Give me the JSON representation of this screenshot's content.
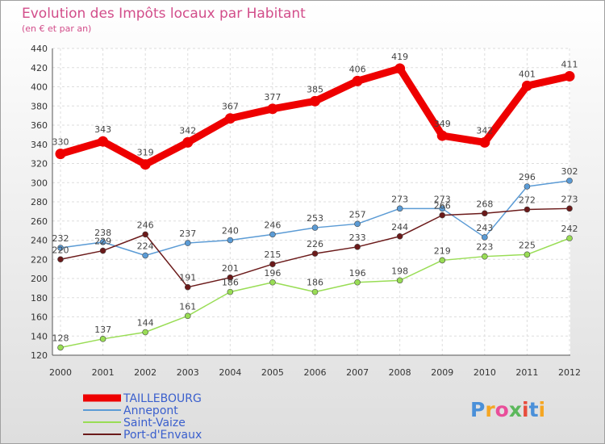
{
  "chart_data": {
    "type": "line",
    "title": "Evolution des Impôts locaux par Habitant",
    "subtitle": "(en € et par an)",
    "xlabel": "",
    "ylabel": "",
    "categories": [
      "2000",
      "2001",
      "2002",
      "2003",
      "2004",
      "2005",
      "2006",
      "2007",
      "2008",
      "2009",
      "2010",
      "2011",
      "2012"
    ],
    "ylim": [
      120,
      440
    ],
    "yticks": [
      120,
      140,
      160,
      180,
      200,
      220,
      240,
      260,
      280,
      300,
      320,
      340,
      360,
      380,
      400,
      420,
      440
    ],
    "grid": true,
    "legend_position": "bottom-left",
    "series": [
      {
        "name": "TAILLEBOURG",
        "color": "#ee0000",
        "values": [
          330,
          343,
          319,
          342,
          367,
          377,
          385,
          406,
          419,
          349,
          342,
          401,
          411
        ]
      },
      {
        "name": "Annepont",
        "color": "#5b9bd5",
        "values": [
          232,
          238,
          224,
          237,
          240,
          246,
          253,
          257,
          273,
          273,
          243,
          296,
          302
        ]
      },
      {
        "name": "Saint-Vaize",
        "color": "#99dd55",
        "values": [
          128,
          137,
          144,
          161,
          186,
          196,
          186,
          196,
          198,
          219,
          223,
          225,
          242
        ]
      },
      {
        "name": "Port-d'Envaux",
        "color": "#6b1a1a",
        "values": [
          220,
          229,
          246,
          191,
          201,
          215,
          226,
          233,
          244,
          266,
          268,
          272,
          273
        ]
      }
    ]
  },
  "brand": {
    "text": "Proxiti"
  }
}
